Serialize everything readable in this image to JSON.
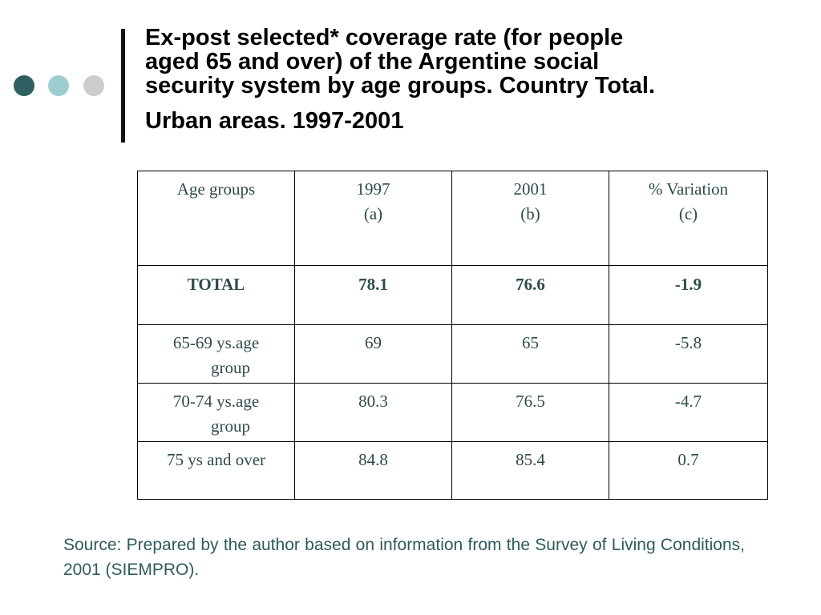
{
  "title": {
    "line1": "Ex-post selected* coverage rate (for people",
    "line2": "aged 65 and over) of the Argentine social",
    "line3": "security system by age groups. Country Total.",
    "line4": "Urban areas.  1997-2001"
  },
  "table": {
    "headers": [
      {
        "main": "Age groups",
        "sub": ""
      },
      {
        "main": "1997",
        "sub": "(a)"
      },
      {
        "main": "2001",
        "sub": "(b)"
      },
      {
        "main": "% Variation",
        "sub": "(c)"
      }
    ],
    "total_row": {
      "label": "TOTAL",
      "y1997": "78.1",
      "y2001": "76.6",
      "variation": "-1.9"
    },
    "rows": [
      {
        "label_a": "65-69 ys.age",
        "label_b": "group",
        "y1997": "69",
        "y2001": "65",
        "variation": "-5.8"
      },
      {
        "label_a": "70-74 ys.age",
        "label_b": "group",
        "y1997": "80.3",
        "y2001": "76.5",
        "variation": "-4.7"
      },
      {
        "label_a": "75 ys and over",
        "label_b": "",
        "y1997": "84.8",
        "y2001": "85.4",
        "variation": "0.7"
      }
    ]
  },
  "source": "Source: Prepared by the author based on information from the Survey of Living Conditions, 2001 (SIEMPRO).",
  "colors": {
    "dot_dark": "#2f5f60",
    "dot_light": "#9ecdd0",
    "dot_gray": "#cccccc",
    "table_text": "#2e4b4c",
    "source_text": "#2e5a5c"
  }
}
